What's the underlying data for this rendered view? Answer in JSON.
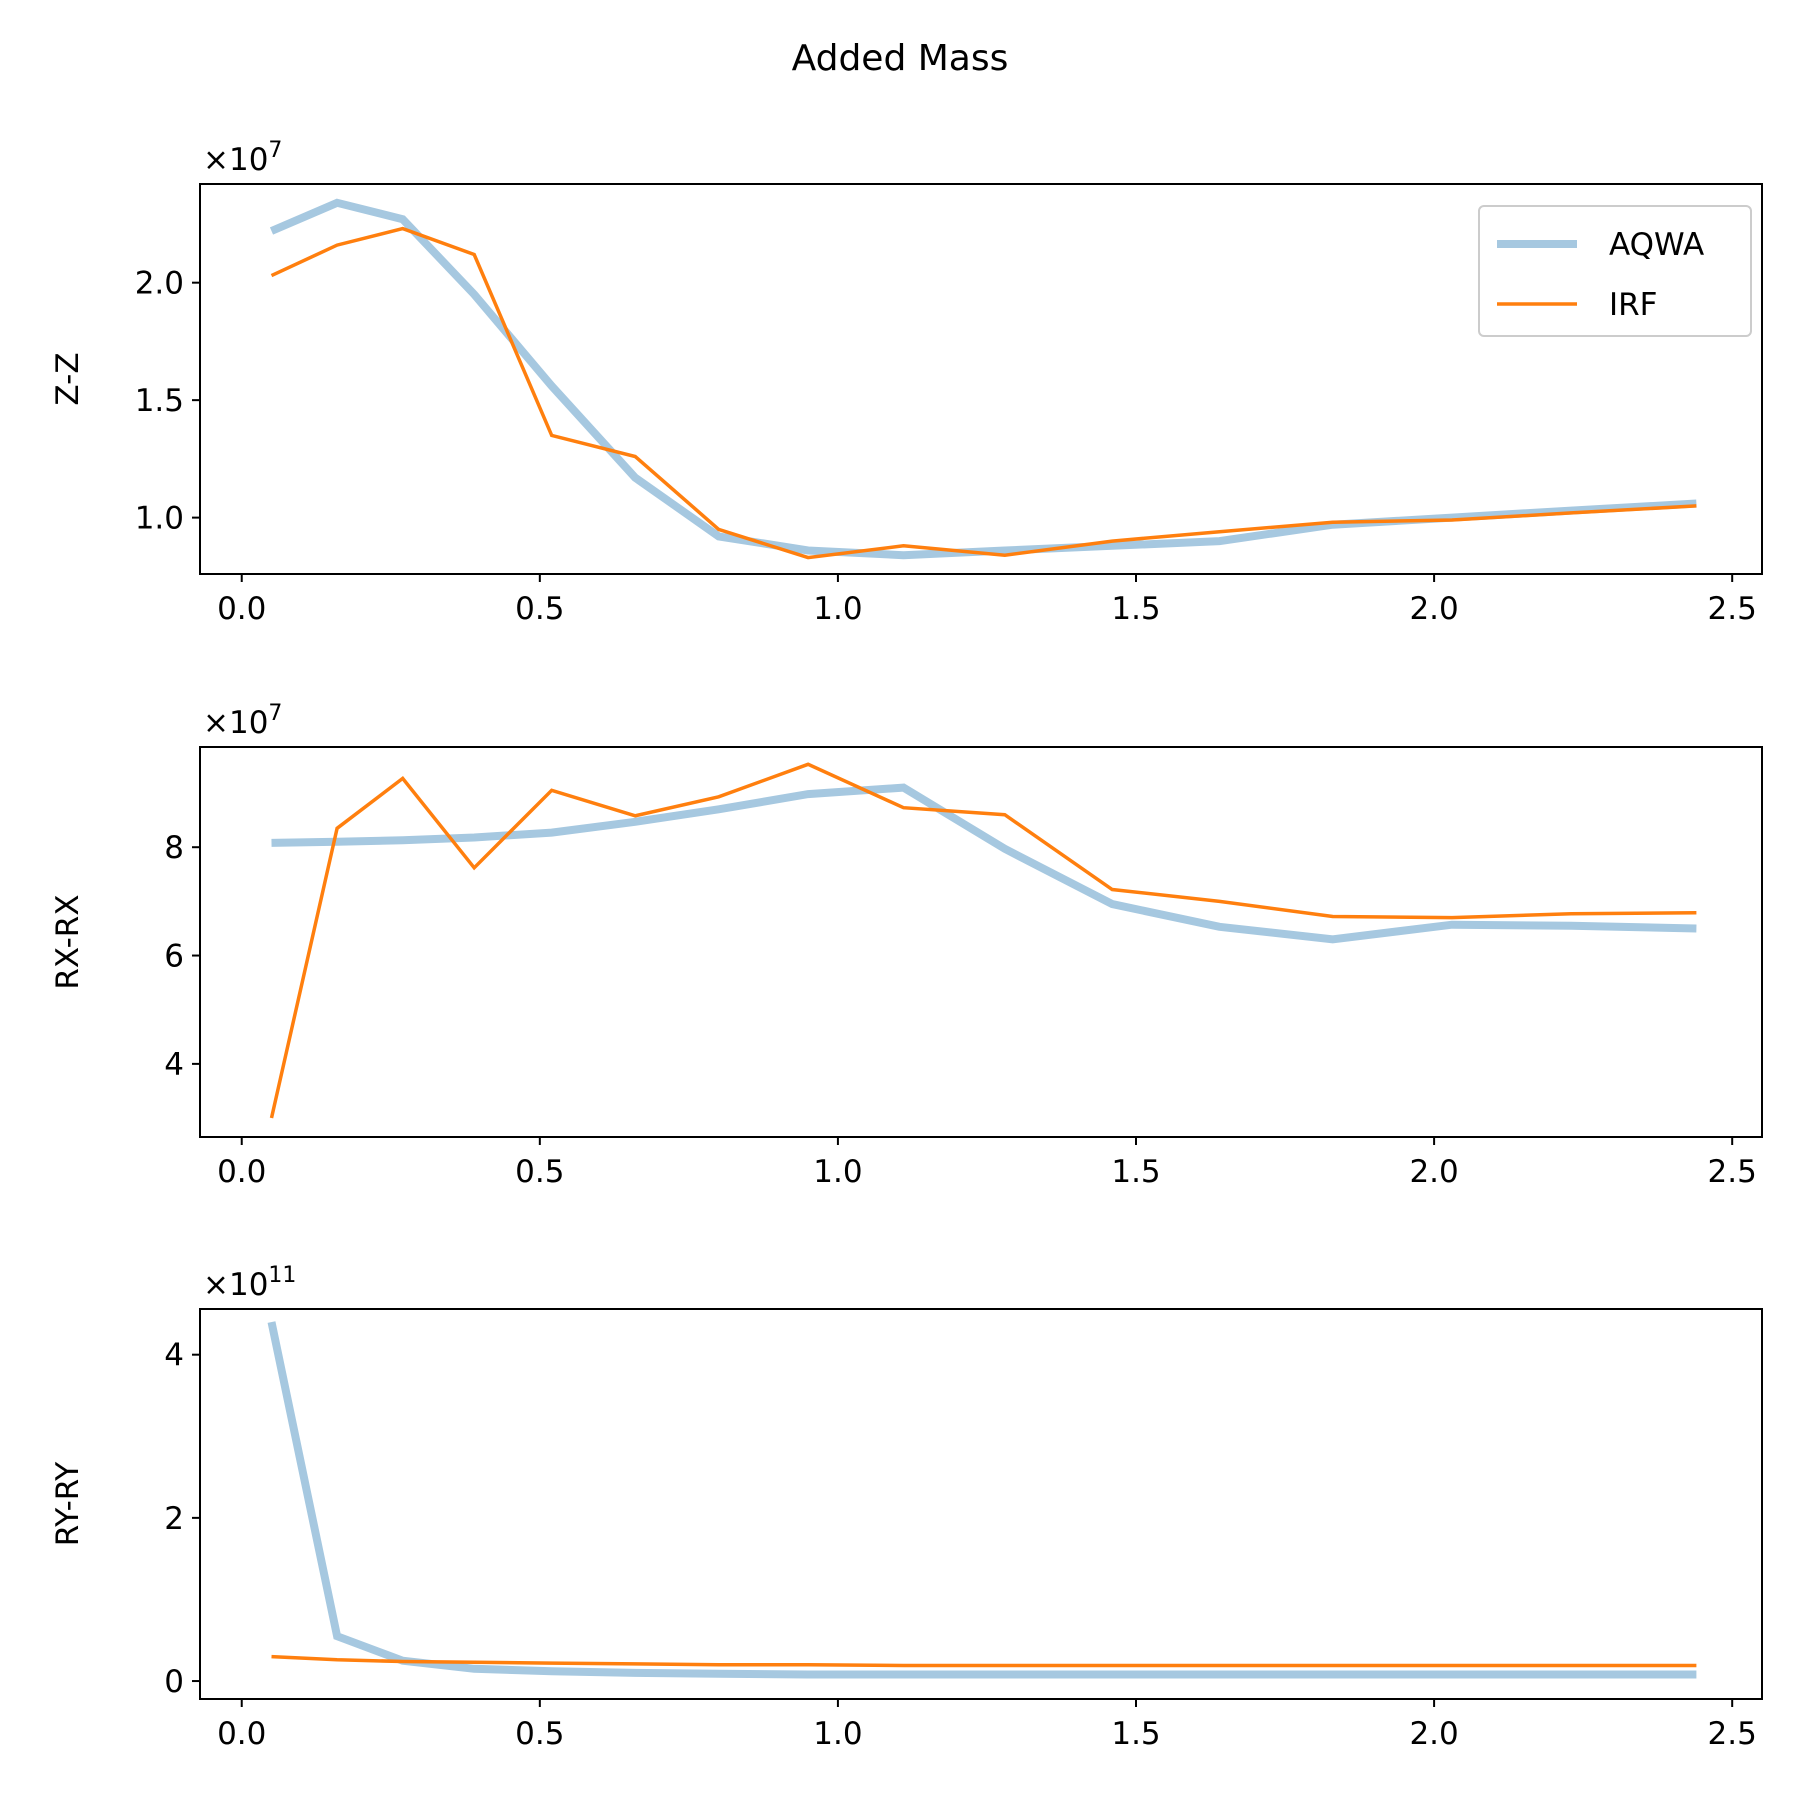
{
  "figure_title": "Added Mass",
  "colors": {
    "AQWA": "#a6c8e0",
    "IRF": "#ff7f0e"
  },
  "legend": [
    "AQWA",
    "IRF"
  ],
  "chart_data": [
    {
      "type": "line",
      "ylabel": "Z-Z",
      "offset_text": "×10",
      "offset_exp": "7",
      "xlim": [
        -0.07,
        2.55
      ],
      "ylim": [
        0.76,
        2.42
      ],
      "xticks": [
        "0.0",
        "0.5",
        "1.0",
        "1.5",
        "2.0",
        "2.5"
      ],
      "xtick_values": [
        0.0,
        0.5,
        1.0,
        1.5,
        2.0,
        2.5
      ],
      "yticks": [
        "1.0",
        "1.5",
        "2.0"
      ],
      "ytick_values": [
        1.0,
        1.5,
        2.0
      ],
      "legend_position": "top-right",
      "series": [
        {
          "name": "AQWA",
          "x": [
            0.05,
            0.16,
            0.27,
            0.39,
            0.52,
            0.66,
            0.8,
            0.95,
            1.11,
            1.28,
            1.46,
            1.64,
            1.83,
            2.03,
            2.23,
            2.44
          ],
          "y": [
            2.22,
            2.34,
            2.27,
            1.95,
            1.56,
            1.17,
            0.92,
            0.86,
            0.84,
            0.86,
            0.88,
            0.9,
            0.97,
            1.0,
            1.03,
            1.06
          ]
        },
        {
          "name": "IRF",
          "x": [
            0.05,
            0.16,
            0.27,
            0.39,
            0.52,
            0.66,
            0.8,
            0.95,
            1.11,
            1.28,
            1.46,
            1.64,
            1.83,
            2.03,
            2.23,
            2.44
          ],
          "y": [
            2.03,
            2.16,
            2.23,
            2.12,
            1.35,
            1.26,
            0.95,
            0.83,
            0.88,
            0.84,
            0.9,
            0.94,
            0.98,
            0.99,
            1.02,
            1.05
          ]
        }
      ]
    },
    {
      "type": "line",
      "ylabel": "RX-RX",
      "offset_text": "×10",
      "offset_exp": "7",
      "xlim": [
        -0.07,
        2.55
      ],
      "ylim": [
        2.65,
        9.85
      ],
      "xticks": [
        "0.0",
        "0.5",
        "1.0",
        "1.5",
        "2.0",
        "2.5"
      ],
      "xtick_values": [
        0.0,
        0.5,
        1.0,
        1.5,
        2.0,
        2.5
      ],
      "yticks": [
        "4",
        "6",
        "8"
      ],
      "ytick_values": [
        4,
        6,
        8
      ],
      "series": [
        {
          "name": "AQWA",
          "x": [
            0.05,
            0.16,
            0.27,
            0.39,
            0.52,
            0.66,
            0.8,
            0.95,
            1.11,
            1.28,
            1.46,
            1.64,
            1.83,
            2.03,
            2.23,
            2.44
          ],
          "y": [
            8.08,
            8.1,
            8.13,
            8.18,
            8.27,
            8.47,
            8.7,
            8.98,
            9.1,
            7.97,
            6.95,
            6.53,
            6.3,
            6.57,
            6.55,
            6.5
          ]
        },
        {
          "name": "IRF",
          "x": [
            0.05,
            0.16,
            0.27,
            0.39,
            0.52,
            0.66,
            0.8,
            0.95,
            1.11,
            1.28,
            1.46,
            1.64,
            1.83,
            2.03,
            2.23,
            2.44
          ],
          "y": [
            3.0,
            8.35,
            9.27,
            7.62,
            9.05,
            8.58,
            8.93,
            9.53,
            8.73,
            8.6,
            7.22,
            7.0,
            6.72,
            6.7,
            6.77,
            6.79
          ]
        }
      ]
    },
    {
      "type": "line",
      "ylabel": "RY-RY",
      "offset_text": "×10",
      "offset_exp": "11",
      "xlim": [
        -0.07,
        2.55
      ],
      "ylim": [
        -0.22,
        4.56
      ],
      "xticks": [
        "0.0",
        "0.5",
        "1.0",
        "1.5",
        "2.0",
        "2.5"
      ],
      "xtick_values": [
        0.0,
        0.5,
        1.0,
        1.5,
        2.0,
        2.5
      ],
      "yticks": [
        "0",
        "2",
        "4"
      ],
      "ytick_values": [
        0,
        2,
        4
      ],
      "series": [
        {
          "name": "AQWA",
          "x": [
            0.05,
            0.16,
            0.27,
            0.39,
            0.52,
            0.66,
            0.8,
            0.95,
            1.11,
            1.28,
            1.46,
            1.64,
            1.83,
            2.03,
            2.23,
            2.44
          ],
          "y": [
            4.4,
            0.55,
            0.25,
            0.15,
            0.12,
            0.1,
            0.09,
            0.08,
            0.08,
            0.08,
            0.08,
            0.08,
            0.08,
            0.08,
            0.08,
            0.08
          ]
        },
        {
          "name": "IRF",
          "x": [
            0.05,
            0.16,
            0.27,
            0.39,
            0.52,
            0.66,
            0.8,
            0.95,
            1.11,
            1.28,
            1.46,
            1.64,
            1.83,
            2.03,
            2.23,
            2.44
          ],
          "y": [
            0.3,
            0.26,
            0.24,
            0.23,
            0.22,
            0.21,
            0.2,
            0.2,
            0.19,
            0.19,
            0.19,
            0.19,
            0.19,
            0.19,
            0.19,
            0.19
          ]
        }
      ]
    }
  ]
}
